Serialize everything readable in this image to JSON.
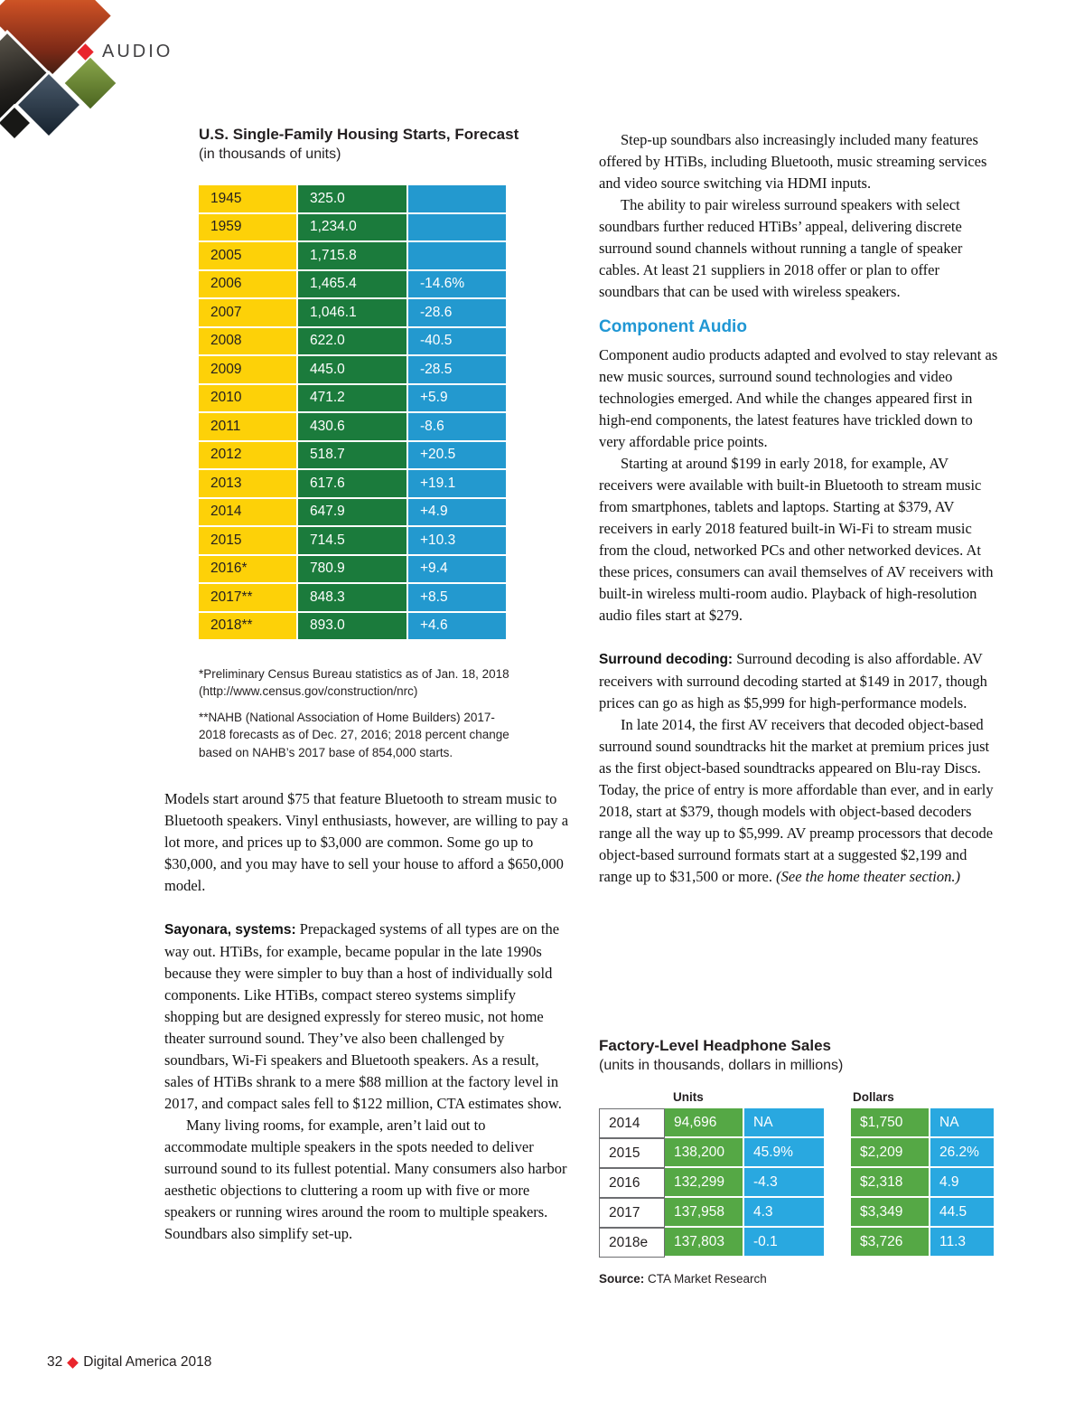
{
  "header": {
    "section_label": "AUDIO"
  },
  "housing_table": {
    "title": "U.S. Single-Family Housing Starts, Forecast",
    "subtitle": "(in thousands of units)",
    "rows": [
      {
        "year": "1945",
        "value": "325.0",
        "change": ""
      },
      {
        "year": "1959",
        "value": "1,234.0",
        "change": ""
      },
      {
        "year": "2005",
        "value": "1,715.8",
        "change": ""
      },
      {
        "year": "2006",
        "value": "1,465.4",
        "change": "-14.6%"
      },
      {
        "year": "2007",
        "value": "1,046.1",
        "change": "-28.6"
      },
      {
        "year": "2008",
        "value": "622.0",
        "change": "-40.5"
      },
      {
        "year": "2009",
        "value": "445.0",
        "change": "-28.5"
      },
      {
        "year": "2010",
        "value": "471.2",
        "change": "+5.9"
      },
      {
        "year": "2011",
        "value": "430.6",
        "change": "-8.6"
      },
      {
        "year": "2012",
        "value": "518.7",
        "change": "+20.5"
      },
      {
        "year": "2013",
        "value": "617.6",
        "change": "+19.1"
      },
      {
        "year": "2014",
        "value": "647.9",
        "change": "+4.9"
      },
      {
        "year": "2015",
        "value": "714.5",
        "change": "+10.3"
      },
      {
        "year": "2016*",
        "value": "780.9",
        "change": "+9.4"
      },
      {
        "year": "2017**",
        "value": "848.3",
        "change": "+8.5"
      },
      {
        "year": "2018**",
        "value": "893.0",
        "change": "+4.6"
      }
    ],
    "footnote1": "*Preliminary Census Bureau statistics as of Jan. 18, 2018 (http://www.census.gov/construction/nrc)",
    "footnote2": "**NAHB (National Association of Home Builders) 2017-2018 forecasts as of Dec. 27, 2016; 2018 percent change based on NAHB’s 2017 base of 854,000 starts."
  },
  "left_column": {
    "para1": "Models start around $75 that feature Bluetooth to stream music to Bluetooth speakers. Vinyl enthusiasts, however, are willing to pay a lot more, and prices up to $3,000 are common. Some go up to $30,000, and you may have to sell your house to afford a $650,000 model.",
    "para2_lead": "Sayonara, systems:",
    "para2_text": " Prepackaged systems of all types are on the way out. HTiBs, for example, became popular in the late 1990s because they were simpler to buy than a host of individually sold components. Like HTiBs, compact stereo systems simplify shopping but are designed expressly for stereo music, not home theater surround sound. They’ve also been challenged by soundbars, Wi-Fi speakers and Bluetooth speakers. As a result, sales of HTiBs shrank to a mere $88 million at the factory level in 2017, and compact sales fell to $122 million, CTA estimates show.",
    "para3": "Many living rooms, for example, aren’t laid out to accommodate multiple speakers in the spots needed to deliver surround sound to its fullest potential. Many consumers also harbor aesthetic objections to cluttering a room up with five or more speakers or running wires around the room to multiple speakers. Soundbars also simplify set-up."
  },
  "right_column": {
    "para1": "Step-up soundbars also increasingly included many features offered by HTiBs, including Bluetooth, music streaming services and video source switching via HDMI inputs.",
    "para2": "The ability to pair wireless surround speakers with select soundbars further reduced HTiBs’ appeal, delivering discrete surround sound channels without running a tangle of speaker cables. At least 21 suppliers in 2018 offer or plan to offer soundbars that can be used with wireless speakers.",
    "component_heading": "Component Audio",
    "para3": "Component audio products adapted and evolved to stay relevant as new music sources, surround sound technologies and video technologies emerged. And while the changes appeared first in high-end components, the latest features have trickled down to very affordable price points.",
    "para4": "Starting at around $199 in early 2018, for example, AV receivers were available with built-in Bluetooth to stream music from smartphones, tablets and laptops. Starting at $379, AV receivers in early 2018 featured built-in Wi-Fi to stream music from the cloud, networked PCs and other networked devices. At these prices, consumers can avail themselves of AV receivers with built-in wireless multi-room audio. Playback of high-resolution audio files start at $279.",
    "para5_lead": "Surround decoding:",
    "para5_text": " Surround decoding is also affordable. AV receivers with surround decoding started at $149 in 2017, though prices can go as high as $5,999 for high-performance models.",
    "para6": "In late 2014, the first AV receivers that decoded object-based surround sound soundtracks hit the market at premium prices just as the first object-based soundtracks appeared on Blu-ray Discs. Today, the price of entry is more affordable than ever, and in early 2018, start at $379, though models with object-based decoders range all the way up to $5,999. AV preamp processors that decode object-based surround formats start at a suggested $2,199 and range up to $31,500 or more. ",
    "para6_italic": "(See the home theater section.)"
  },
  "headphone_table": {
    "title": "Factory-Level Headphone Sales",
    "subtitle": "(units in thousands, dollars in millions)",
    "units_label": "Units",
    "dollars_label": "Dollars",
    "rows": [
      {
        "year": "2014",
        "units": "94,696",
        "units_change": "NA",
        "dollars": "$1,750",
        "dollars_change": "NA"
      },
      {
        "year": "2015",
        "units": "138,200",
        "units_change": "45.9%",
        "dollars": "$2,209",
        "dollars_change": "26.2%"
      },
      {
        "year": "2016",
        "units": "132,299",
        "units_change": "-4.3",
        "dollars": "$2,318",
        "dollars_change": "4.9"
      },
      {
        "year": "2017",
        "units": "137,958",
        "units_change": "4.3",
        "dollars": "$3,349",
        "dollars_change": "44.5"
      },
      {
        "year": "2018e",
        "units": "137,803",
        "units_change": "-0.1",
        "dollars": "$3,726",
        "dollars_change": "11.3"
      }
    ],
    "source_label": "Source:",
    "source_text": " CTA Market Research"
  },
  "footer": {
    "page_number": "32",
    "publication": "Digital America 2018"
  },
  "colors": {
    "accent_red": "#e9252c",
    "table_yellow": "#fdd108",
    "table_dark_green": "#1b7b3c",
    "table_blue": "#2399cf",
    "headphone_green": "#55a845",
    "headphone_blue": "#29a8e0",
    "heading_blue": "#2097d4"
  }
}
